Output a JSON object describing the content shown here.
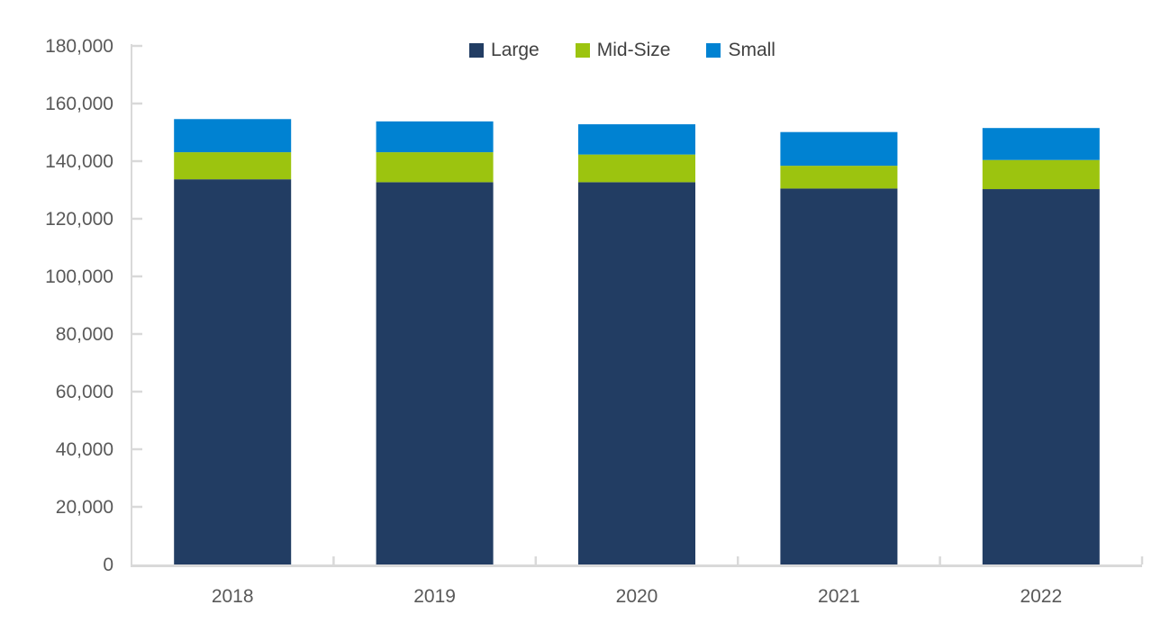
{
  "chart_data": {
    "type": "bar",
    "stacked": true,
    "title": "",
    "xlabel": "",
    "ylabel": "",
    "categories": [
      "2018",
      "2019",
      "2020",
      "2021",
      "2022"
    ],
    "series": [
      {
        "name": "Large",
        "color": "#223D63",
        "values": [
          133700,
          132700,
          132700,
          130500,
          130300
        ]
      },
      {
        "name": "Mid-Size",
        "color": "#9CC40F",
        "values": [
          9400,
          10400,
          9600,
          7900,
          10100
        ]
      },
      {
        "name": "Small",
        "color": "#0082D2",
        "values": [
          11500,
          10700,
          10500,
          11700,
          11100
        ]
      }
    ],
    "ylim": [
      0,
      180000
    ],
    "ytick_step": 20000,
    "ytick_labels": [
      "0",
      "20,000",
      "40,000",
      "60,000",
      "80,000",
      "100,000",
      "120,000",
      "140,000",
      "160,000",
      "180,000"
    ],
    "grid": false,
    "legend_position": "top-center",
    "axis_line_color": "#D9D9D9",
    "axis_label_color": "#595959",
    "legend_text_color": "#404040",
    "background_color": "#FFFFFF"
  }
}
